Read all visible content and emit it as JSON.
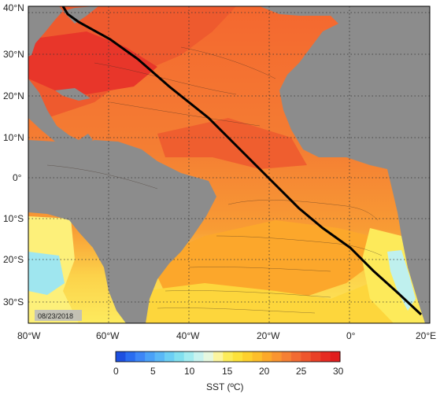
{
  "map": {
    "date": "08/23/2018",
    "projection": "equirectangular",
    "lon_range": [
      -80,
      20
    ],
    "lat_range": [
      -35,
      40
    ],
    "lat_ticks": [
      "40°N",
      "30°N",
      "20°N",
      "10°N",
      "0°",
      "10°S",
      "20°S",
      "30°S"
    ],
    "lon_ticks": [
      "80°W",
      "60°W",
      "40°W",
      "20°W",
      "0°",
      "20°E"
    ],
    "land_color": "#8c8c8c",
    "track_color": "#000000",
    "gridlines": "dotted"
  },
  "colorbar": {
    "label": "SST (ºC)",
    "ticks": [
      "0",
      "5",
      "10",
      "15",
      "20",
      "25",
      "30"
    ],
    "colors": [
      "#1d4fe0",
      "#2a6cf0",
      "#3d86f7",
      "#4aa1f8",
      "#5ab8f7",
      "#6ccff4",
      "#82e0ef",
      "#a3ecf0",
      "#c8f3ef",
      "#e6f8e0",
      "#fbf5a0",
      "#fcec5a",
      "#fde23a",
      "#fed12d",
      "#fdbf2a",
      "#fca92a",
      "#fa9530",
      "#f68034",
      "#f26b33",
      "#ee562d",
      "#ea4127",
      "#e62b22",
      "#e11d1d"
    ]
  }
}
